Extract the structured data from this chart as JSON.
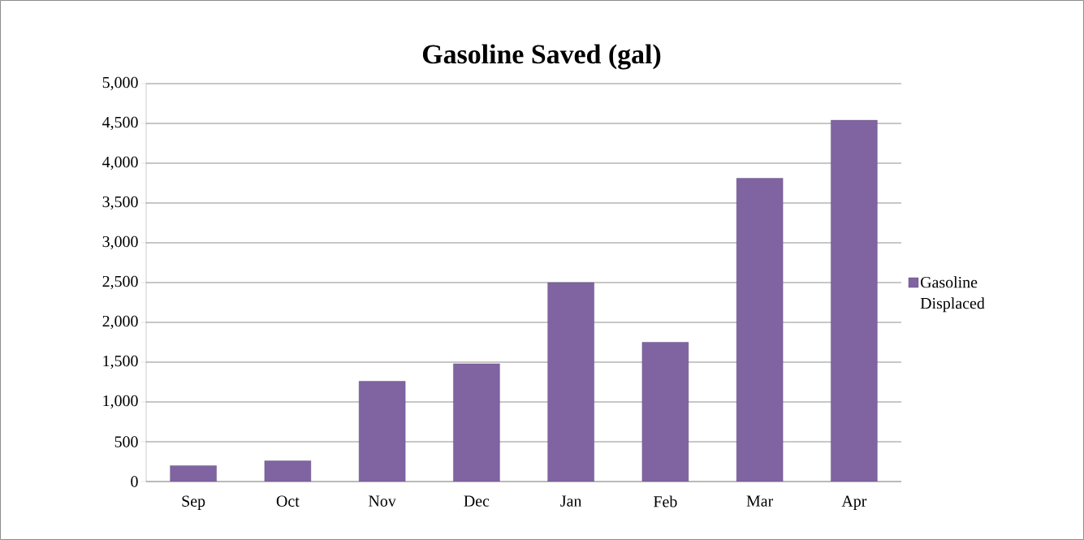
{
  "chart_data": {
    "type": "bar",
    "title": "Gasoline Saved (gal)",
    "categories": [
      "Sep",
      "Oct",
      "Nov",
      "Dec",
      "Jan",
      "Feb",
      "Mar",
      "Apr"
    ],
    "series": [
      {
        "name": "Gasoline Displaced",
        "color": "#8064a2",
        "values": [
          200,
          260,
          1260,
          1480,
          2500,
          1750,
          3810,
          4540
        ]
      }
    ],
    "ylim": [
      0,
      5000
    ],
    "yticks": [
      0,
      500,
      {
        "value": 1000,
        "label": "1,000"
      },
      {
        "value": 1500,
        "label": "1,500"
      },
      {
        "value": 2000,
        "label": "2,000"
      },
      {
        "value": 2500,
        "label": "2,500"
      },
      {
        "value": 3000,
        "label": "3,000"
      },
      {
        "value": 3500,
        "label": "3,500"
      },
      {
        "value": 4000,
        "label": "4,000"
      },
      {
        "value": 4500,
        "label": "4,500"
      },
      {
        "value": 5000,
        "label": "5,000"
      }
    ],
    "grid": "y",
    "legend": "right"
  }
}
